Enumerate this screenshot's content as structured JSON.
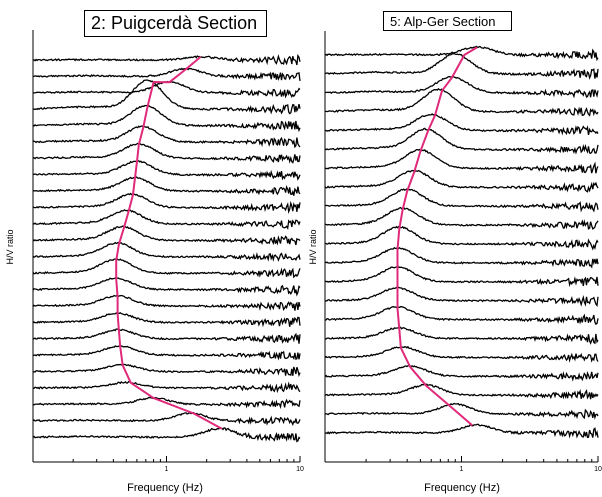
{
  "chart_data": [
    {
      "type": "line",
      "title": "2: Puigcerdà Section",
      "xlabel": "Frequency (Hz)",
      "ylabel": "H/V ratio",
      "xscale": "log",
      "xlim": [
        0.1,
        10
      ],
      "xticks": [
        {
          "v": 1,
          "label": "1"
        },
        {
          "v": 10,
          "label": "10"
        }
      ],
      "grid": false,
      "stations": 24,
      "stacking": "H/V curves stacked vertically, one per station, offset top to bottom",
      "peak_line_color": "#e0297a",
      "curve_color": "#000000",
      "peak_frequency_hz": [
        1.8,
        1.4,
        1.05,
        0.8,
        0.72,
        0.67,
        0.62,
        0.6,
        0.58,
        0.56,
        0.52,
        0.48,
        0.44,
        0.42,
        0.42,
        0.43,
        0.43,
        0.44,
        0.45,
        0.47,
        0.54,
        0.8,
        1.6,
        2.6
      ],
      "curve_peaks": [
        {
          "station": 1,
          "f0": 1.8,
          "amp": 0.15
        },
        {
          "station": 2,
          "f0": 1.4,
          "amp": 0.35
        },
        {
          "station": 3,
          "f0": 1.05,
          "amp": 0.5
        },
        {
          "station": 4,
          "f0": 0.72,
          "amp": 1.3
        },
        {
          "station": 5,
          "f0": 0.7,
          "amp": 0.9
        },
        {
          "station": 6,
          "f0": 0.66,
          "amp": 0.7
        },
        {
          "station": 7,
          "f0": 0.62,
          "amp": 0.65
        },
        {
          "station": 8,
          "f0": 0.6,
          "amp": 0.6
        },
        {
          "station": 9,
          "f0": 0.58,
          "amp": 0.6
        },
        {
          "station": 10,
          "f0": 0.55,
          "amp": 0.6
        },
        {
          "station": 11,
          "f0": 0.5,
          "amp": 0.6
        },
        {
          "station": 12,
          "f0": 0.47,
          "amp": 0.6
        },
        {
          "station": 13,
          "f0": 0.43,
          "amp": 0.6
        },
        {
          "station": 14,
          "f0": 0.42,
          "amp": 0.6
        },
        {
          "station": 15,
          "f0": 0.42,
          "amp": 0.5
        },
        {
          "station": 16,
          "f0": 0.43,
          "amp": 0.45
        },
        {
          "station": 17,
          "f0": 0.43,
          "amp": 0.4
        },
        {
          "station": 18,
          "f0": 0.44,
          "amp": 0.4
        },
        {
          "station": 19,
          "f0": 0.45,
          "amp": 0.4
        },
        {
          "station": 20,
          "f0": 0.47,
          "amp": 0.3
        },
        {
          "station": 21,
          "f0": 0.5,
          "amp": 0.25
        },
        {
          "station": 22,
          "f0": 0.8,
          "amp": 0.3
        },
        {
          "station": 23,
          "f0": 1.5,
          "amp": 0.35
        },
        {
          "station": 24,
          "f0": 2.5,
          "amp": 0.4
        }
      ]
    },
    {
      "type": "line",
      "title": "5: Alp-Ger Section",
      "xlabel": "Frequency (Hz)",
      "ylabel": "H/V ratio",
      "xscale": "log",
      "xlim": [
        0.1,
        10
      ],
      "xticks": [
        {
          "v": 1,
          "label": "1"
        },
        {
          "v": 10,
          "label": "10"
        }
      ],
      "grid": false,
      "stations": 21,
      "stacking": "H/V curves stacked vertically, one per station, offset top to bottom",
      "peak_line_color": "#e0297a",
      "curve_color": "#000000",
      "peak_frequency_hz": [
        1.3,
        1.05,
        0.85,
        0.72,
        0.64,
        0.57,
        0.5,
        0.45,
        0.4,
        0.37,
        0.35,
        0.34,
        0.34,
        0.34,
        0.34,
        0.35,
        0.36,
        0.42,
        0.55,
        0.8,
        1.2
      ],
      "curve_peaks": [
        {
          "station": 1,
          "f0": 1.3,
          "amp": 0.4
        },
        {
          "station": 2,
          "f0": 0.9,
          "amp": 1.0
        },
        {
          "station": 3,
          "f0": 0.85,
          "amp": 0.8
        },
        {
          "station": 4,
          "f0": 0.68,
          "amp": 1.1
        },
        {
          "station": 5,
          "f0": 0.6,
          "amp": 0.8
        },
        {
          "station": 6,
          "f0": 0.55,
          "amp": 1.0
        },
        {
          "station": 7,
          "f0": 0.5,
          "amp": 0.9
        },
        {
          "station": 8,
          "f0": 0.45,
          "amp": 0.8
        },
        {
          "station": 9,
          "f0": 0.4,
          "amp": 0.8
        },
        {
          "station": 10,
          "f0": 0.37,
          "amp": 0.8
        },
        {
          "station": 11,
          "f0": 0.35,
          "amp": 0.8
        },
        {
          "station": 12,
          "f0": 0.34,
          "amp": 0.7
        },
        {
          "station": 13,
          "f0": 0.34,
          "amp": 0.7
        },
        {
          "station": 14,
          "f0": 0.34,
          "amp": 0.6
        },
        {
          "station": 15,
          "f0": 0.34,
          "amp": 0.6
        },
        {
          "station": 16,
          "f0": 0.35,
          "amp": 0.5
        },
        {
          "station": 17,
          "f0": 0.37,
          "amp": 0.5
        },
        {
          "station": 18,
          "f0": 0.42,
          "amp": 0.5
        },
        {
          "station": 19,
          "f0": 0.55,
          "amp": 0.5
        },
        {
          "station": 20,
          "f0": 0.9,
          "amp": 0.5
        },
        {
          "station": 21,
          "f0": 1.3,
          "amp": 0.4
        }
      ]
    }
  ]
}
